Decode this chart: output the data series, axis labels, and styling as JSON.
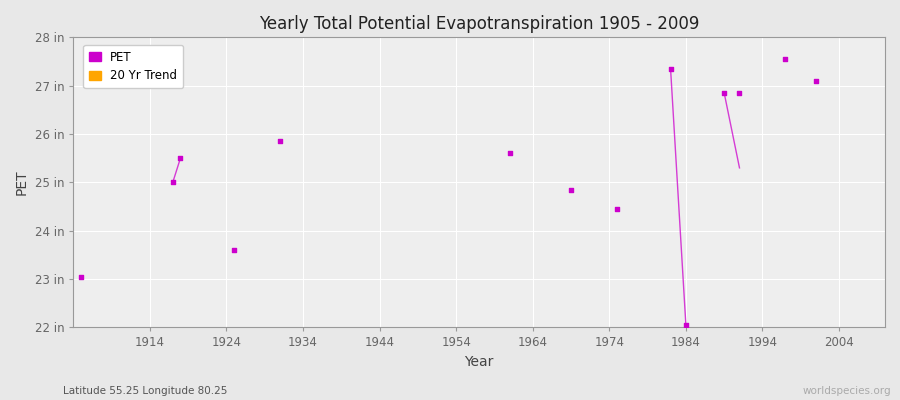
{
  "title": "Yearly Total Potential Evapotranspiration 1905 - 2009",
  "xlabel": "Year",
  "ylabel": "PET",
  "xlim": [
    1904,
    2010
  ],
  "ylim": [
    22,
    28
  ],
  "yticks": [
    22,
    23,
    24,
    25,
    26,
    27,
    28
  ],
  "ytick_labels": [
    "22 in",
    "23 in",
    "24 in",
    "25 in",
    "26 in",
    "27 in",
    "28 in"
  ],
  "xticks": [
    1914,
    1924,
    1934,
    1944,
    1954,
    1964,
    1974,
    1984,
    1994,
    2004
  ],
  "bg_color": "#e8e8e8",
  "plot_bg_color": "#eeeeee",
  "grid_color": "#ffffff",
  "pet_color": "#cc00cc",
  "trend_color": "#ffa500",
  "pet_label": "PET",
  "trend_label": "20 Yr Trend",
  "subtitle": "Latitude 55.25 Longitude 80.25",
  "watermark": "worldspecies.org",
  "pet_data": [
    [
      1905,
      23.05
    ],
    [
      1917,
      25.0
    ],
    [
      1918,
      25.5
    ],
    [
      1925,
      23.6
    ],
    [
      1931,
      25.85
    ],
    [
      1961,
      25.6
    ],
    [
      1969,
      24.85
    ],
    [
      1975,
      24.45
    ],
    [
      1982,
      27.35
    ],
    [
      1984,
      22.05
    ],
    [
      1989,
      26.85
    ],
    [
      1991,
      26.85
    ],
    [
      1997,
      27.55
    ],
    [
      2001,
      27.1
    ]
  ],
  "trend_segments": [
    [
      [
        1917,
        25.0
      ],
      [
        1918,
        25.5
      ]
    ],
    [
      [
        1982,
        27.35
      ],
      [
        1984,
        22.05
      ]
    ],
    [
      [
        1989,
        26.85
      ],
      [
        1991,
        25.3
      ]
    ]
  ]
}
